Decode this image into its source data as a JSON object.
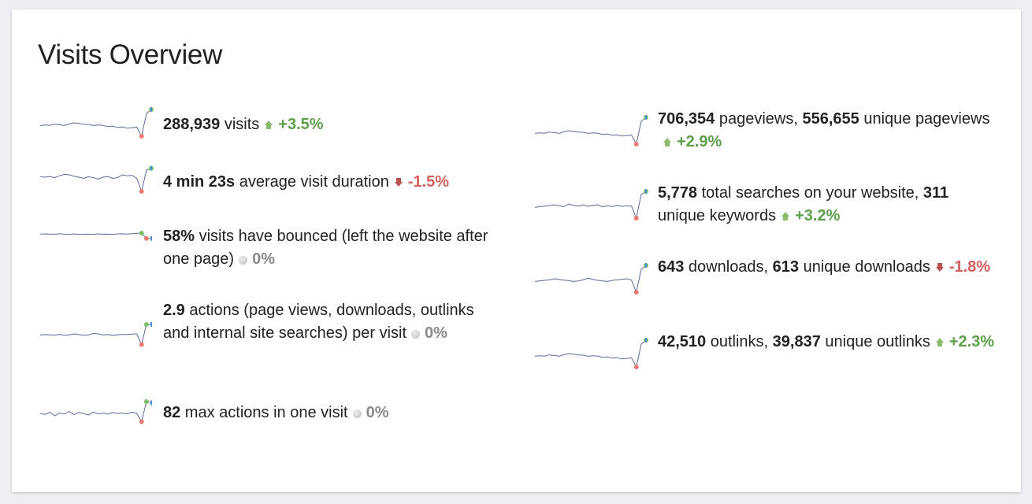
{
  "title": "Visits Overview",
  "metrics": [
    {
      "parts": [
        {
          "v": "288,939",
          "b": true
        },
        {
          "v": " visits",
          "b": false
        }
      ],
      "trend": "up",
      "change": "+3.5%",
      "spark": [
        0.4,
        0.42,
        0.41,
        0.45,
        0.43,
        0.4,
        0.46,
        0.5,
        0.48,
        0.45,
        0.44,
        0.4,
        0.42,
        0.41,
        0.36,
        0.38,
        0.33,
        0.35,
        0.3,
        0.32,
        0.34,
        0.0,
        0.85,
        1.0
      ]
    },
    {
      "parts": [
        {
          "v": "4 min 23s",
          "b": true
        },
        {
          "v": " average visit duration",
          "b": false
        }
      ],
      "trend": "down",
      "change": "-1.5%",
      "spark": [
        0.62,
        0.6,
        0.63,
        0.58,
        0.66,
        0.72,
        0.7,
        0.64,
        0.6,
        0.55,
        0.62,
        0.58,
        0.52,
        0.6,
        0.63,
        0.55,
        0.58,
        0.7,
        0.66,
        0.68,
        0.55,
        0.0,
        0.9,
        0.98
      ]
    },
    {
      "parts": [
        {
          "v": "58%",
          "b": true
        },
        {
          "v": " visits have bounced (left the website after one page)",
          "b": false
        }
      ],
      "trend": "flat",
      "change": "0%",
      "spark": [
        0.7,
        0.72,
        0.71,
        0.7,
        0.73,
        0.7,
        0.69,
        0.72,
        0.68,
        0.7,
        0.71,
        0.69,
        0.72,
        0.7,
        0.71,
        0.69,
        0.72,
        0.73,
        0.71,
        0.74,
        0.76,
        0.78,
        0.4,
        0.4
      ]
    },
    {
      "parts": [
        {
          "v": "2.9",
          "b": true
        },
        {
          "v": " actions (page views, downloads, outlinks and internal site searches) per visit",
          "b": false
        }
      ],
      "trend": "flat",
      "change": "0%",
      "spark": [
        0.45,
        0.47,
        0.46,
        0.45,
        0.48,
        0.44,
        0.46,
        0.5,
        0.47,
        0.45,
        0.46,
        0.52,
        0.5,
        0.46,
        0.47,
        0.44,
        0.46,
        0.48,
        0.47,
        0.49,
        0.5,
        0.05,
        0.9,
        0.9
      ]
    },
    {
      "parts": [
        {
          "v": "82",
          "b": true
        },
        {
          "v": " max actions in one visit",
          "b": false
        }
      ],
      "trend": "flat",
      "change": "0%",
      "spark": [
        0.4,
        0.36,
        0.45,
        0.3,
        0.42,
        0.38,
        0.48,
        0.35,
        0.44,
        0.4,
        0.33,
        0.46,
        0.38,
        0.42,
        0.37,
        0.44,
        0.4,
        0.42,
        0.38,
        0.45,
        0.41,
        0.05,
        0.9,
        0.85
      ]
    },
    {
      "parts": [
        {
          "v": "706,354",
          "b": true
        },
        {
          "v": " pageviews, ",
          "b": false
        },
        {
          "v": "556,655",
          "b": true
        },
        {
          "v": " unique pageviews",
          "b": false
        }
      ],
      "trend": "up",
      "change": "+2.9%",
      "spark": [
        0.4,
        0.42,
        0.41,
        0.45,
        0.43,
        0.4,
        0.46,
        0.5,
        0.48,
        0.45,
        0.44,
        0.4,
        0.42,
        0.41,
        0.36,
        0.38,
        0.33,
        0.35,
        0.3,
        0.32,
        0.34,
        0.0,
        0.85,
        1.0
      ]
    },
    {
      "parts": [
        {
          "v": "5,778",
          "b": true
        },
        {
          "v": " total searches on your website, ",
          "b": false
        },
        {
          "v": "311",
          "b": true
        },
        {
          "v": " unique keywords",
          "b": false
        }
      ],
      "trend": "up",
      "change": "+3.2%",
      "spark": [
        0.4,
        0.43,
        0.45,
        0.47,
        0.5,
        0.46,
        0.43,
        0.52,
        0.48,
        0.45,
        0.5,
        0.44,
        0.47,
        0.5,
        0.42,
        0.46,
        0.43,
        0.48,
        0.44,
        0.46,
        0.45,
        0.0,
        0.88,
        1.0
      ]
    },
    {
      "parts": [
        {
          "v": "643",
          "b": true
        },
        {
          "v": " downloads, ",
          "b": false
        },
        {
          "v": "613",
          "b": true
        },
        {
          "v": " unique downloads",
          "b": false
        }
      ],
      "trend": "down",
      "change": "-1.8%",
      "spark": [
        0.4,
        0.42,
        0.44,
        0.46,
        0.5,
        0.48,
        0.45,
        0.43,
        0.4,
        0.42,
        0.46,
        0.52,
        0.48,
        0.44,
        0.42,
        0.4,
        0.44,
        0.46,
        0.48,
        0.5,
        0.45,
        0.0,
        0.85,
        1.0
      ]
    },
    {
      "parts": [
        {
          "v": "42,510",
          "b": true
        },
        {
          "v": " outlinks, ",
          "b": false
        },
        {
          "v": "39,837",
          "b": true
        },
        {
          "v": " unique outlinks",
          "b": false
        }
      ],
      "trend": "up",
      "change": "+2.3%",
      "spark": [
        0.4,
        0.42,
        0.41,
        0.45,
        0.43,
        0.4,
        0.46,
        0.5,
        0.48,
        0.45,
        0.44,
        0.4,
        0.42,
        0.41,
        0.36,
        0.38,
        0.33,
        0.35,
        0.3,
        0.32,
        0.34,
        0.0,
        0.85,
        1.0
      ]
    }
  ],
  "colors": {
    "line": "#5a6b9c",
    "min": "#ea7a74",
    "max": "#7dbf6a",
    "last": "#4a90d9"
  }
}
